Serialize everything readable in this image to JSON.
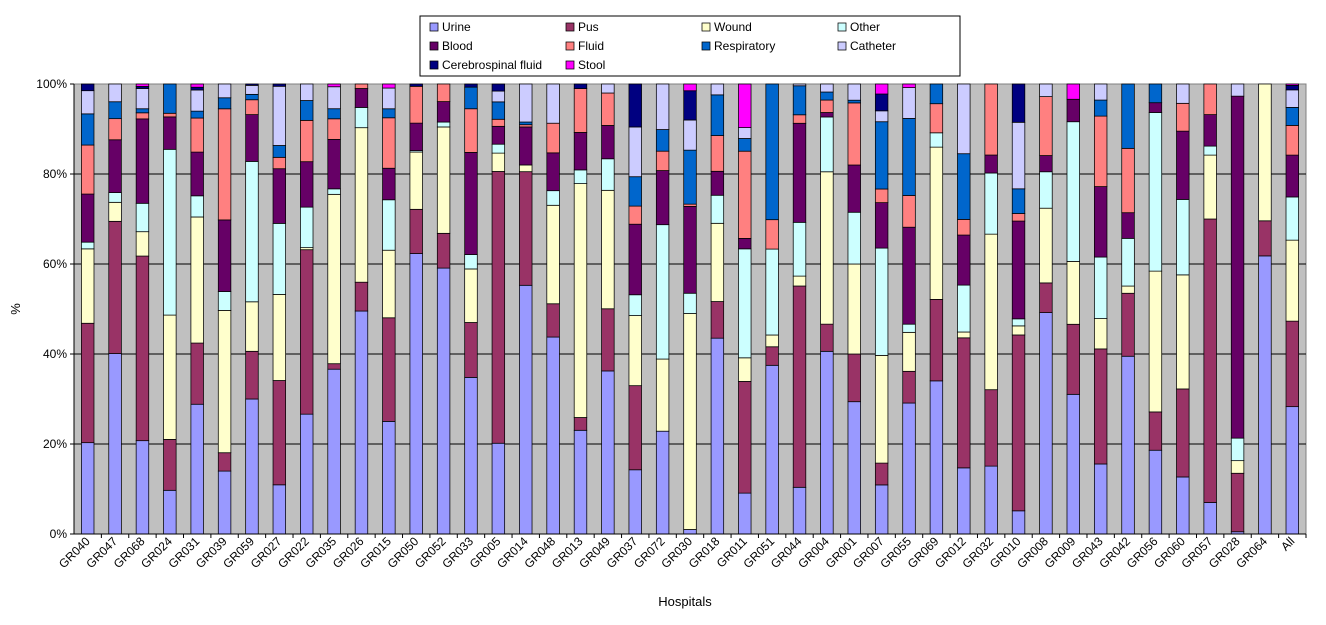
{
  "chart_data": {
    "type": "bar",
    "stacked": "percent",
    "ylabel": "%",
    "xlabel": "Hospitals",
    "ylim": [
      0,
      100
    ],
    "yticks": [
      "0%",
      "20%",
      "40%",
      "60%",
      "80%",
      "100%"
    ],
    "grid": true,
    "legend_position": "top-center",
    "plot_background": "#c0c0c0",
    "categories": [
      "GR040",
      "GR047",
      "GR068",
      "GR024",
      "GR031",
      "GR039",
      "GR059",
      "GR027",
      "GR022",
      "GR035",
      "GR026",
      "GR015",
      "GR050",
      "GR052",
      "GR033",
      "GR005",
      "GR014",
      "GR048",
      "GR013",
      "GR049",
      "GR037",
      "GR072",
      "GR030",
      "GR018",
      "GR011",
      "GR051",
      "GR044",
      "GR004",
      "GR001",
      "GR007",
      "GR055",
      "GR069",
      "GR012",
      "GR032",
      "GR010",
      "GR008",
      "GR009",
      "GR043",
      "GR042",
      "GR056",
      "GR060",
      "GR057",
      "GR028",
      "GR064",
      "All"
    ],
    "series": [
      {
        "name": "Urine",
        "color": "#9999ff",
        "values": [
          20.5,
          42.7,
          23.0,
          9.7,
          28.2,
          13.7,
          30.0,
          10.8,
          29.0,
          36.0,
          49.5,
          25.0,
          60.2,
          65.0,
          34.8,
          19.3,
          55.6,
          43.2,
          22.7,
          36.2,
          14.2,
          22.8,
          1.0,
          43.3,
          9.0,
          37.3,
          13.2,
          41.0,
          29.4,
          10.8,
          28.9,
          34.2,
          14.8,
          15.1,
          4.6,
          49.2,
          31.1,
          15.7,
          39.5,
          18.8,
          12.7,
          7.0,
          0.5,
          61.8,
          28.3
        ]
      },
      {
        "name": "Pus",
        "color": "#993366",
        "values": [
          26.8,
          31.3,
          45.5,
          11.3,
          13.3,
          4.0,
          10.6,
          22.9,
          39.8,
          1.2,
          6.4,
          23.0,
          9.5,
          8.5,
          12.2,
          57.8,
          25.4,
          7.3,
          2.8,
          13.8,
          18.6,
          0,
          0,
          8.1,
          24.6,
          4.1,
          56.9,
          6.1,
          10.6,
          4.8,
          7.0,
          18.2,
          29.1,
          17.0,
          34.9,
          6.6,
          15.6,
          25.8,
          14.0,
          8.6,
          19.6,
          63.0,
          13.0,
          7.8,
          19.0
        ]
      },
      {
        "name": "Blood",
        "color": "#660066",
        "values": [
          10.8,
          12.5,
          20.8,
          7.2,
          9.5,
          15.6,
          10.4,
          12.0,
          11.0,
          10.8,
          4.2,
          7.0,
          5.9,
          5.0,
          22.7,
          3.8,
          8.5,
          8.3,
          8.2,
          7.4,
          15.6,
          12.0,
          19.3,
          5.3,
          2.3,
          0,
          28.0,
          1.0,
          10.5,
          10.0,
          21.4,
          0,
          11.2,
          4.0,
          19.4,
          3.6,
          5.0,
          15.8,
          5.7,
          2.2,
          15.2,
          7.0,
          76.0,
          0,
          9.3
        ]
      },
      {
        "name": "Fluid",
        "color": "#ff8080",
        "values": [
          11.0,
          5.0,
          1.5,
          0.8,
          7.4,
          24.2,
          3.3,
          2.5,
          10.0,
          4.5,
          1.0,
          11.2,
          7.9,
          4.3,
          9.7,
          1.5,
          0.5,
          6.5,
          9.6,
          7.2,
          4.0,
          4.3,
          0.5,
          7.9,
          19.2,
          6.5,
          2.4,
          2.8,
          13.8,
          3.0,
          7.0,
          6.5,
          3.5,
          15.8,
          1.5,
          13.1,
          0,
          15.8,
          14.3,
          0,
          6.2,
          6.8,
          0,
          0,
          6.6
        ]
      },
      {
        "name": "Respiratory",
        "color": "#0066cc",
        "values": [
          7.0,
          4.0,
          1.0,
          6.5,
          1.5,
          2.4,
          1.2,
          2.6,
          4.8,
          2.2,
          0,
          2.0,
          0,
          0,
          4.8,
          3.7,
          0.6,
          0,
          0,
          0,
          6.5,
          4.8,
          12.0,
          9.0,
          2.8,
          30.0,
          8.2,
          1.8,
          0.6,
          14.8,
          17.0,
          4.4,
          14.7,
          0,
          4.9,
          0,
          0,
          3.6,
          14.3,
          4.2,
          0,
          0,
          0,
          0,
          4.0
        ]
      },
      {
        "name": "Other",
        "color": "#ccffff",
        "values": [
          1.5,
          2.3,
          7.0,
          36.8,
          4.6,
          4.1,
          31.2,
          15.6,
          9.8,
          1.2,
          4.5,
          11.2,
          0.3,
          1.2,
          3.2,
          1.9,
          0,
          3.2,
          3.0,
          7.0,
          4.6,
          29.8,
          4.5,
          6.2,
          24.0,
          19.0,
          15.2,
          12.3,
          11.5,
          23.6,
          1.8,
          3.2,
          10.5,
          13.6,
          1.4,
          8.1,
          31.1,
          13.8,
          10.6,
          35.6,
          16.8,
          2.0,
          5.0,
          0,
          9.6
        ]
      },
      {
        "name": "Wound",
        "color": "#ffffcc",
        "values": [
          16.7,
          4.5,
          6.0,
          27.6,
          27.4,
          31.0,
          11.0,
          18.9,
          0.5,
          37.0,
          34.3,
          15.0,
          12.3,
          26.0,
          11.9,
          3.9,
          1.5,
          21.6,
          51.2,
          26.3,
          15.5,
          16.0,
          48.0,
          17.3,
          5.2,
          2.6,
          2.8,
          34.2,
          20.0,
          23.7,
          8.6,
          34.0,
          1.3,
          34.6,
          1.8,
          16.6,
          14.0,
          6.8,
          1.6,
          31.6,
          25.4,
          14.2,
          2.8,
          30.4,
          18.0
        ]
      },
      {
        "name": "Catheter",
        "color": "#ccccff",
        "values": [
          5.2,
          4.2,
          5.0,
          0,
          4.6,
          3.0,
          2.0,
          13.0,
          4.0,
          4.8,
          0,
          4.6,
          0,
          0,
          0,
          2.3,
          8.5,
          8.6,
          0,
          2.0,
          11.0,
          10.1,
          6.7,
          2.4,
          2.4,
          0,
          0.5,
          1.8,
          3.6,
          2.4,
          6.8,
          0,
          15.6,
          0,
          13.2,
          2.8,
          0,
          3.6,
          0,
          0,
          4.3,
          0,
          2.7,
          0,
          3.9
        ]
      },
      {
        "name": "Cerebrospinal fluid",
        "color": "#000080",
        "values": [
          1.5,
          0,
          0.5,
          0,
          0.6,
          0,
          0.3,
          0.5,
          0,
          0,
          0,
          0,
          0.5,
          0,
          0.7,
          1.5,
          0,
          0,
          1.0,
          0,
          9.5,
          0,
          6.5,
          0,
          0,
          0,
          0,
          0,
          0,
          3.7,
          0,
          0,
          0,
          0,
          7.6,
          0,
          0,
          0,
          0,
          0,
          0,
          0,
          0,
          0,
          1.0
        ]
      },
      {
        "name": "Stool",
        "color": "#ff00ff",
        "values": [
          0,
          0,
          0.6,
          0,
          0.7,
          0,
          0,
          0,
          0,
          0.6,
          0,
          0.9,
          0,
          0,
          0,
          0,
          0,
          0,
          0,
          0,
          0,
          0,
          1.5,
          0,
          9.6,
          0,
          0,
          0,
          0,
          2.2,
          0.8,
          0,
          0,
          0,
          0,
          0,
          3.4,
          0,
          0,
          0,
          0,
          0,
          0,
          0,
          0.3
        ]
      }
    ],
    "stack_order": [
      "Urine",
      "Pus",
      "Wound",
      "Other",
      "Blood",
      "Fluid",
      "Respiratory",
      "Catheter",
      "Cerebrospinal fluid",
      "Stool"
    ],
    "legend_order": [
      "Urine",
      "Pus",
      "Wound",
      "Other",
      "Blood",
      "Fluid",
      "Respiratory",
      "Catheter",
      "Cerebrospinal fluid",
      "Stool"
    ]
  }
}
